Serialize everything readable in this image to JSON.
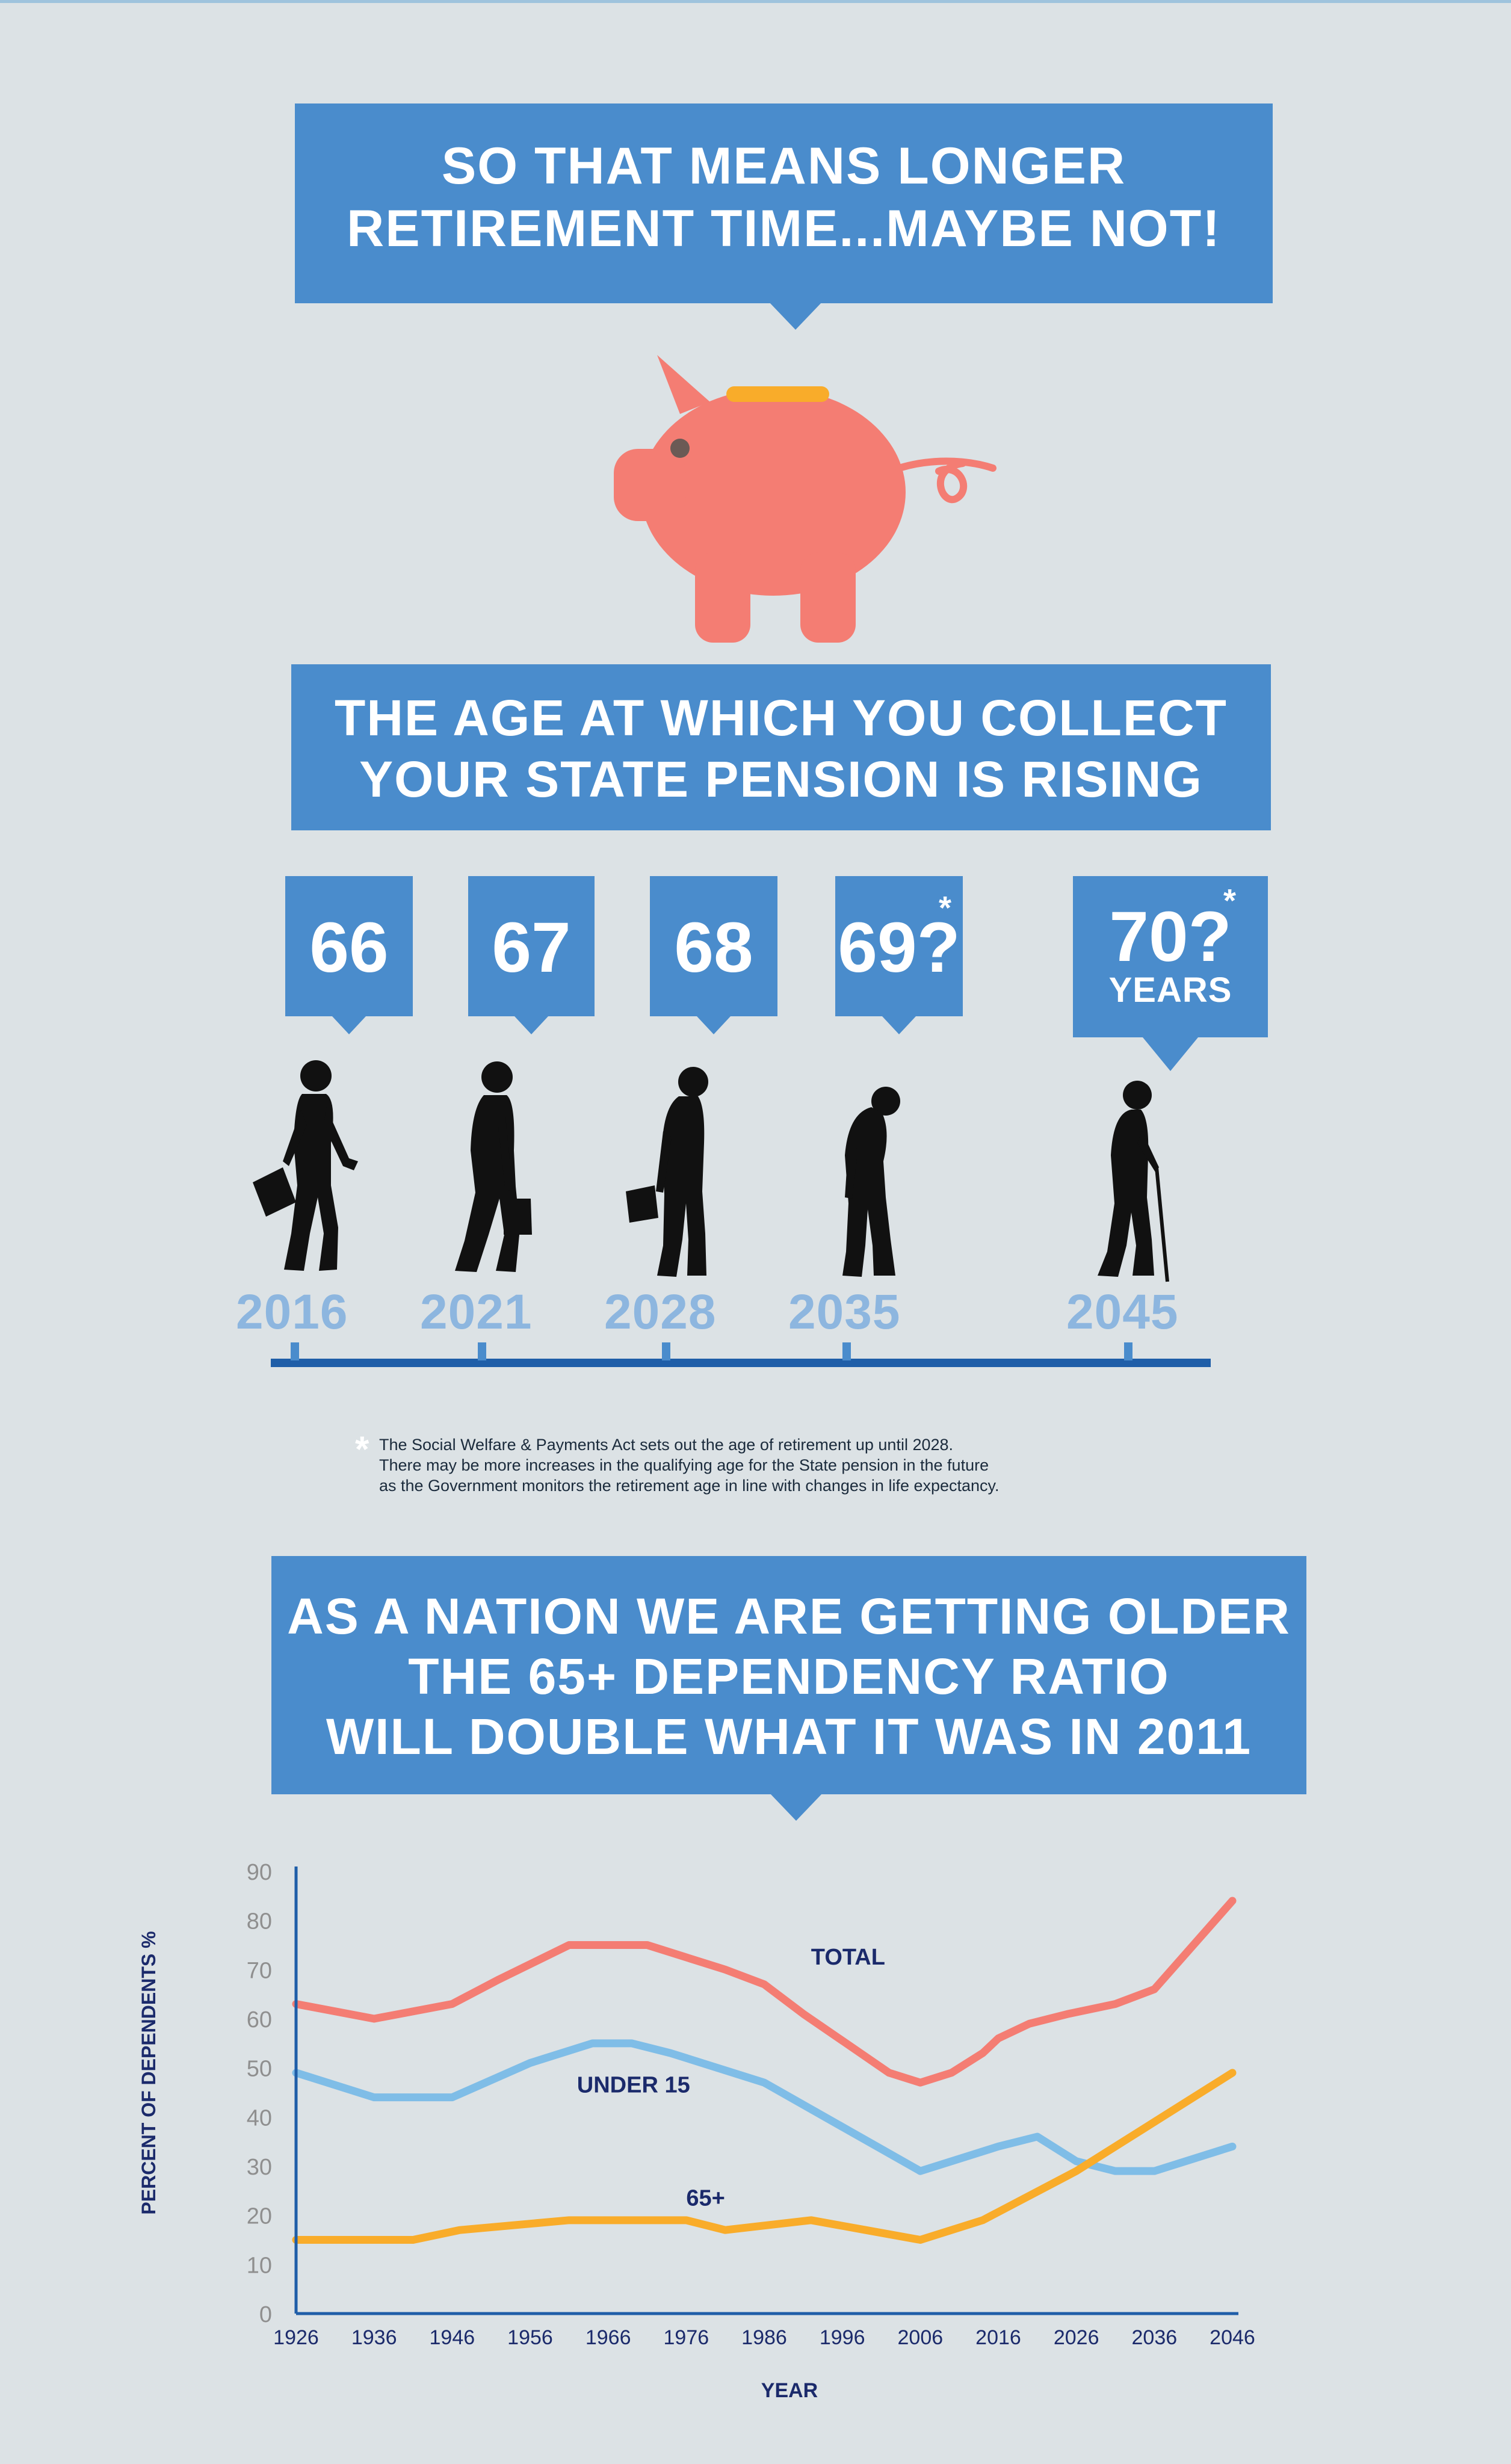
{
  "banner_top": {
    "line1": "SO THAT MEANS LONGER",
    "line2": "RETIREMENT TIME...MAYBE NOT!"
  },
  "banner_pension": {
    "line1": "THE AGE AT WHICH YOU COLLECT",
    "line2": "YOUR STATE PENSION IS RISING"
  },
  "pension_ages": [
    {
      "age": "66",
      "year": "2016"
    },
    {
      "age": "67",
      "year": "2021"
    },
    {
      "age": "68",
      "year": "2028"
    },
    {
      "age": "69?",
      "year": "2035",
      "asterisk": "*"
    },
    {
      "age": "70?",
      "year": "2045",
      "asterisk": "*",
      "unit": "YEARS"
    }
  ],
  "footnote": {
    "asterisk": "*",
    "line1": "The Social Welfare & Payments Act sets out the age of retirement up until 2028.",
    "line2": "There may be more increases in the qualifying age for the State pension in the future",
    "line3": "as the Government monitors the retirement age in line with changes in life expectancy."
  },
  "banner_nation": {
    "line1": "AS A NATION WE ARE GETTING OLDER",
    "line2": "THE 65+ DEPENDENCY RATIO",
    "line3": "WILL DOUBLE WHAT IT WAS IN 2011"
  },
  "colors": {
    "banner": "#4a8ccc",
    "background": "#dce2e5",
    "piggy": "#f47d73",
    "total": "#f47d73",
    "under15": "#7fbde7",
    "over65": "#f9ac2a",
    "axis": "#1f5ea8",
    "year_text": "#8db6df"
  },
  "icons": {
    "piggy_bank": "piggy-bank-icon",
    "people": "elderly-person-silhouette-icon"
  },
  "chart_data": {
    "type": "line",
    "xlabel": "YEAR",
    "ylabel": "PERCENT OF DEPENDENTS %",
    "xlim": [
      1926,
      2046
    ],
    "ylim": [
      0,
      90
    ],
    "x_ticks": [
      "1926",
      "1936",
      "1946",
      "1956",
      "1966",
      "1976",
      "1986",
      "1996",
      "2006",
      "2016",
      "2026",
      "2036",
      "2046"
    ],
    "x_tick_values": [
      1926,
      1936,
      1946,
      1956,
      1966,
      1976,
      1986,
      1996,
      2006,
      2016,
      2026,
      2036,
      2046
    ],
    "y_ticks": [
      "0",
      "10",
      "20",
      "30",
      "40",
      "50",
      "60",
      "70",
      "80",
      "90"
    ],
    "y_tick_values": [
      0,
      10,
      20,
      30,
      40,
      50,
      60,
      70,
      80,
      90
    ],
    "grid": false,
    "legend": "inline labels",
    "series": [
      {
        "name": "TOTAL",
        "color": "#f47d73",
        "x": [
          1926,
          1936,
          1946,
          1952,
          1961,
          1966,
          1971,
          1981,
          1986,
          1991,
          2002,
          2006,
          2010,
          2014,
          2016,
          2020,
          2025,
          2031,
          2036,
          2046
        ],
        "y": [
          63,
          60,
          63,
          68,
          75,
          75,
          75,
          70,
          67,
          61,
          49,
          47,
          49,
          53,
          56,
          59,
          61,
          63,
          66,
          84
        ]
      },
      {
        "name": "UNDER 15",
        "color": "#7fbde7",
        "x": [
          1926,
          1936,
          1946,
          1956,
          1964,
          1969,
          1974,
          1986,
          1996,
          2006,
          2016,
          2021,
          2026,
          2031,
          2036,
          2046
        ],
        "y": [
          49,
          44,
          44,
          51,
          55,
          55,
          53,
          47,
          38,
          29,
          34,
          36,
          31,
          29,
          29,
          34
        ]
      },
      {
        "name": "65+",
        "color": "#f9ac2a",
        "x": [
          1926,
          1936,
          1941,
          1947,
          1961,
          1976,
          1981,
          1992,
          1999,
          2006,
          2014,
          2026,
          2036,
          2046
        ],
        "y": [
          15,
          15,
          15,
          17,
          19,
          19,
          17,
          19,
          17,
          15,
          19,
          29,
          39,
          49
        ]
      }
    ]
  }
}
